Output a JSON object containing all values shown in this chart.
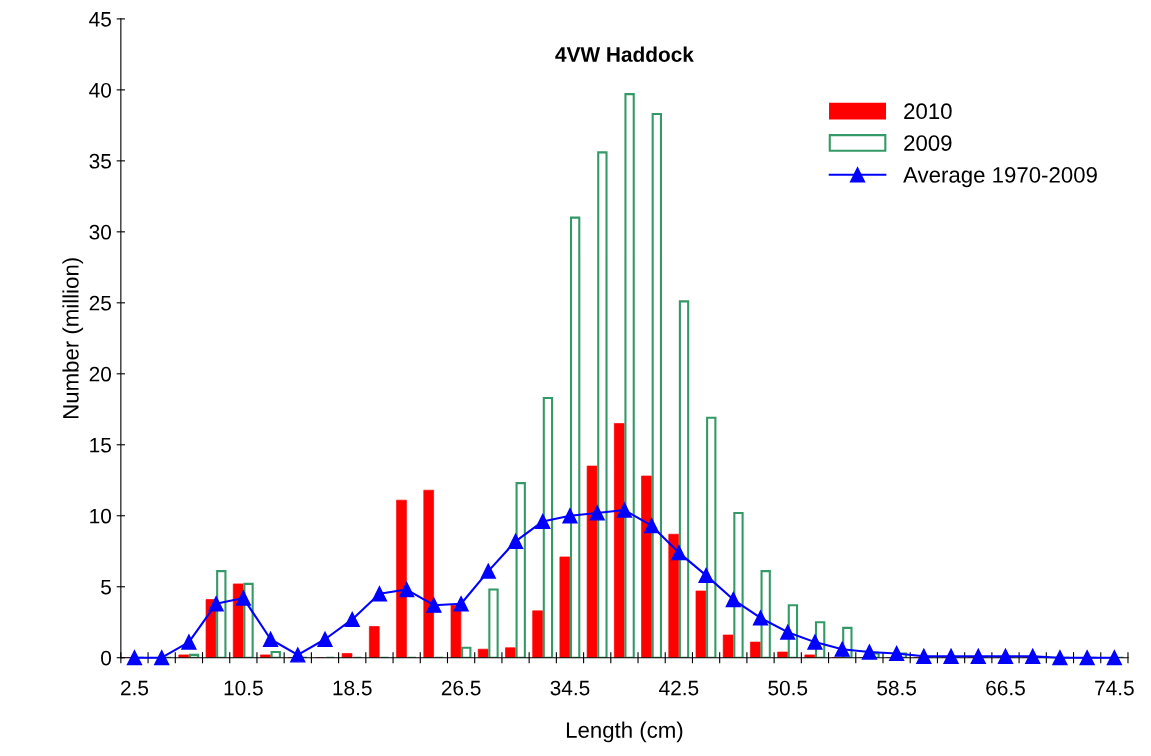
{
  "chart_data": {
    "type": "bar",
    "title": "4VW Haddock",
    "xlabel": "Length (cm)",
    "ylabel": "Number (million)",
    "categories": [
      "2.5",
      null,
      null,
      null,
      "10.5",
      null,
      null,
      null,
      "18.5",
      null,
      null,
      null,
      "26.5",
      null,
      null,
      null,
      "34.5",
      null,
      null,
      null,
      "42.5",
      null,
      null,
      null,
      "50.5",
      null,
      null,
      null,
      "58.5",
      null,
      null,
      null,
      "66.5",
      null,
      null,
      null,
      "74.5"
    ],
    "series": [
      {
        "name": "2010",
        "color": "#ff0000",
        "values": [
          0,
          0,
          0.2,
          4.1,
          5.2,
          0.2,
          0,
          0,
          0.3,
          2.2,
          11.1,
          11.8,
          3.7,
          0.6,
          0.7,
          3.3,
          7.1,
          13.5,
          16.5,
          12.8,
          8.7,
          4.7,
          1.6,
          1.1,
          0.4,
          0.2,
          0,
          0,
          0,
          0,
          0,
          0,
          0,
          0,
          0,
          0,
          0
        ]
      },
      {
        "name": "2009",
        "color": "#339966",
        "values": [
          0,
          0,
          0.2,
          6.1,
          5.2,
          0.4,
          0,
          0,
          0,
          0,
          0,
          0,
          0.7,
          4.8,
          12.3,
          18.3,
          31.0,
          35.6,
          39.7,
          38.3,
          25.1,
          16.9,
          10.2,
          6.1,
          3.7,
          2.5,
          2.1,
          0.3,
          0.3,
          null,
          0,
          0,
          0,
          0,
          0,
          0,
          0
        ]
      },
      {
        "name": "Average 1970-2009",
        "type": "line",
        "color": "#0000ff",
        "marker": "triangle",
        "line_style": "solid",
        "values": [
          0,
          0,
          1.1,
          3.8,
          4.2,
          1.3,
          0.2,
          1.3,
          2.7,
          4.5,
          4.8,
          3.7,
          3.8,
          6.1,
          8.2,
          9.6,
          10.0,
          10.2,
          10.4,
          9.3,
          7.4,
          5.8,
          4.1,
          2.8,
          1.8,
          1.1,
          0.6,
          0.4,
          0.3,
          0.1,
          0.1,
          0.1,
          0.1,
          0.1,
          0,
          0,
          0
        ]
      }
    ],
    "ylim": [
      0,
      45
    ],
    "yticks": [
      0,
      5,
      10,
      15,
      20,
      25,
      30,
      35,
      40,
      45
    ],
    "grid": false,
    "legend": "top right"
  }
}
